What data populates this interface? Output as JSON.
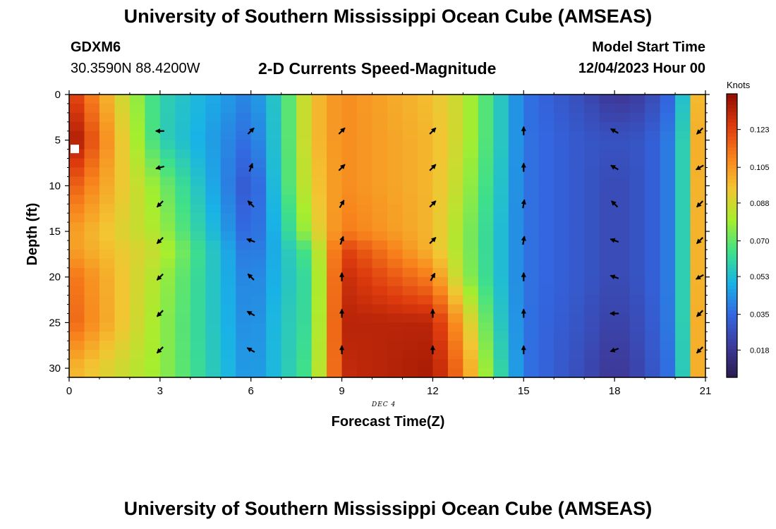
{
  "page": {
    "title_top": "University of Southern Mississippi Ocean Cube (AMSEAS)",
    "title_bottom": "University of Southern Mississippi Ocean Cube (AMSEAS)",
    "station": "GDXM6",
    "coordinates": "30.3590N  88.4200W",
    "subtitle": "2-D Currents Speed-Magnitude",
    "model_start_label": "Model Start Time",
    "model_start_value": "12/04/2023 Hour 00",
    "date_note": "DEC 4",
    "units": "Knots"
  },
  "colors": {
    "scale": [
      "#2b1b4d",
      "#3d3a9a",
      "#3366e0",
      "#19b3e6",
      "#3fe08a",
      "#a6ee2e",
      "#f3c532",
      "#f8821c",
      "#dd3a0e",
      "#8f0d02"
    ]
  },
  "chart_data": {
    "type": "heatmap",
    "title": "2-D Currents Speed-Magnitude",
    "xlabel": "Forecast Time(Z)",
    "ylabel": "Depth (ft)",
    "xlim": [
      0,
      21
    ],
    "ylim": [
      31,
      0
    ],
    "x_ticks": [
      0,
      3,
      6,
      9,
      12,
      15,
      18,
      21
    ],
    "y_ticks": [
      0,
      5,
      10,
      15,
      20,
      25,
      30
    ],
    "colorbar": {
      "label": "Knots",
      "range": [
        0.005,
        0.14
      ],
      "ticks": [
        0.123,
        0.105,
        0.088,
        0.07,
        0.053,
        0.035,
        0.018
      ],
      "tick_labels": [
        "0.123",
        "0.105",
        "0.088",
        "0.070",
        "0.053",
        "0.035",
        "0.018"
      ]
    },
    "times": [
      0,
      3,
      6,
      7,
      8,
      9,
      12,
      13,
      14,
      15,
      17,
      18,
      19,
      20,
      20.5,
      21
    ],
    "depths": [
      0,
      5,
      10,
      15,
      17,
      20,
      25,
      30
    ],
    "speed_knots": [
      [
        0.128,
        0.06,
        0.04,
        0.06,
        0.095,
        0.108,
        0.096,
        0.085,
        0.062,
        0.038,
        0.026,
        0.018,
        0.022,
        0.038,
        0.07,
        0.125
      ],
      [
        0.14,
        0.06,
        0.035,
        0.06,
        0.095,
        0.108,
        0.098,
        0.085,
        0.062,
        0.038,
        0.03,
        0.028,
        0.03,
        0.042,
        0.075,
        0.125
      ],
      [
        0.12,
        0.075,
        0.028,
        0.06,
        0.092,
        0.108,
        0.098,
        0.082,
        0.06,
        0.038,
        0.03,
        0.025,
        0.03,
        0.042,
        0.075,
        0.123
      ],
      [
        0.105,
        0.08,
        0.032,
        0.055,
        0.085,
        0.112,
        0.098,
        0.078,
        0.058,
        0.038,
        0.03,
        0.025,
        0.03,
        0.042,
        0.075,
        0.123
      ],
      [
        0.105,
        0.085,
        0.035,
        0.053,
        0.07,
        0.125,
        0.098,
        0.078,
        0.058,
        0.038,
        0.03,
        0.025,
        0.03,
        0.042,
        0.075,
        0.123
      ],
      [
        0.115,
        0.08,
        0.038,
        0.053,
        0.065,
        0.13,
        0.11,
        0.08,
        0.058,
        0.038,
        0.03,
        0.025,
        0.03,
        0.042,
        0.075,
        0.123
      ],
      [
        0.118,
        0.078,
        0.04,
        0.055,
        0.065,
        0.132,
        0.132,
        0.1,
        0.062,
        0.038,
        0.028,
        0.022,
        0.028,
        0.042,
        0.075,
        0.125
      ],
      [
        0.1,
        0.078,
        0.042,
        0.055,
        0.068,
        0.13,
        0.135,
        0.11,
        0.068,
        0.038,
        0.026,
        0.018,
        0.026,
        0.04,
        0.075,
        0.125
      ]
    ],
    "vectors": {
      "times": [
        3,
        6,
        9,
        12,
        15,
        18,
        21
      ],
      "depths": [
        4,
        8,
        12,
        16,
        20,
        24,
        28
      ],
      "directions_deg": [
        [
          270,
          45,
          45,
          45,
          0,
          300,
          225
        ],
        [
          255,
          20,
          45,
          45,
          0,
          300,
          240
        ],
        [
          225,
          315,
          30,
          45,
          10,
          315,
          225
        ],
        [
          225,
          290,
          20,
          45,
          10,
          290,
          225
        ],
        [
          225,
          315,
          0,
          30,
          0,
          290,
          240
        ],
        [
          225,
          300,
          0,
          0,
          0,
          270,
          225
        ],
        [
          225,
          300,
          0,
          0,
          0,
          250,
          225
        ]
      ]
    }
  }
}
